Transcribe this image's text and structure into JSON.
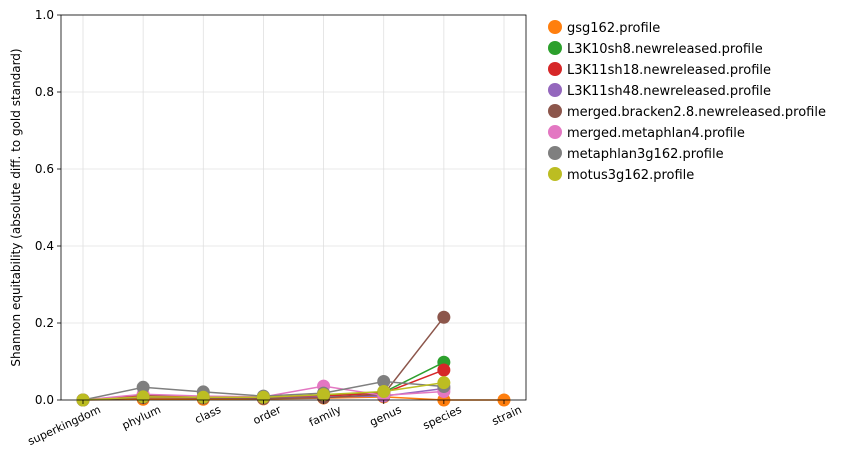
{
  "chart_data": {
    "type": "line",
    "title": "",
    "xlabel": "",
    "ylabel": "Shannon equitability (absolute diff. to gold standard)",
    "ylim": [
      0,
      1.0
    ],
    "yticks": [
      0.0,
      0.2,
      0.4,
      0.6,
      0.8,
      1.0
    ],
    "ytick_labels": [
      "0.0",
      "0.2",
      "0.4",
      "0.6",
      "0.8",
      "1.0"
    ],
    "grid": true,
    "legend_position": "outside-top-right",
    "categories": [
      "superkingdom",
      "phylum",
      "class",
      "order",
      "family",
      "genus",
      "species",
      "strain"
    ],
    "series": [
      {
        "name": "gsg162.profile",
        "color": "#ff7f0e",
        "values": [
          0.0,
          0.002,
          0.002,
          0.003,
          0.005,
          0.008,
          0.0,
          0.0
        ]
      },
      {
        "name": "L3K10sh8.newreleased.profile",
        "color": "#2ca02c",
        "values": [
          0.0,
          0.012,
          0.008,
          0.006,
          0.012,
          0.02,
          0.098,
          null
        ]
      },
      {
        "name": "L3K11sh18.newreleased.profile",
        "color": "#d62728",
        "values": [
          0.0,
          0.01,
          0.007,
          0.005,
          0.01,
          0.018,
          0.078,
          null
        ]
      },
      {
        "name": "L3K11sh48.newreleased.profile",
        "color": "#9467bd",
        "values": [
          0.0,
          0.008,
          0.006,
          0.004,
          0.008,
          0.01,
          0.03,
          null
        ]
      },
      {
        "name": "merged.bracken2.8.newreleased.profile",
        "color": "#8c564b",
        "values": [
          0.0,
          0.006,
          0.005,
          0.004,
          0.006,
          0.015,
          0.215,
          null
        ]
      },
      {
        "name": "merged.metaphlan4.profile",
        "color": "#e377c2",
        "values": [
          0.0,
          0.015,
          0.01,
          0.008,
          0.036,
          0.012,
          0.022,
          null
        ]
      },
      {
        "name": "metaphlan3g162.profile",
        "color": "#7f7f7f",
        "values": [
          0.0,
          0.033,
          0.021,
          0.01,
          0.018,
          0.048,
          0.035,
          null
        ]
      },
      {
        "name": "motus3g162.profile",
        "color": "#bcbd22",
        "values": [
          0.0,
          0.008,
          0.007,
          0.007,
          0.014,
          0.022,
          0.045,
          null
        ]
      }
    ]
  }
}
